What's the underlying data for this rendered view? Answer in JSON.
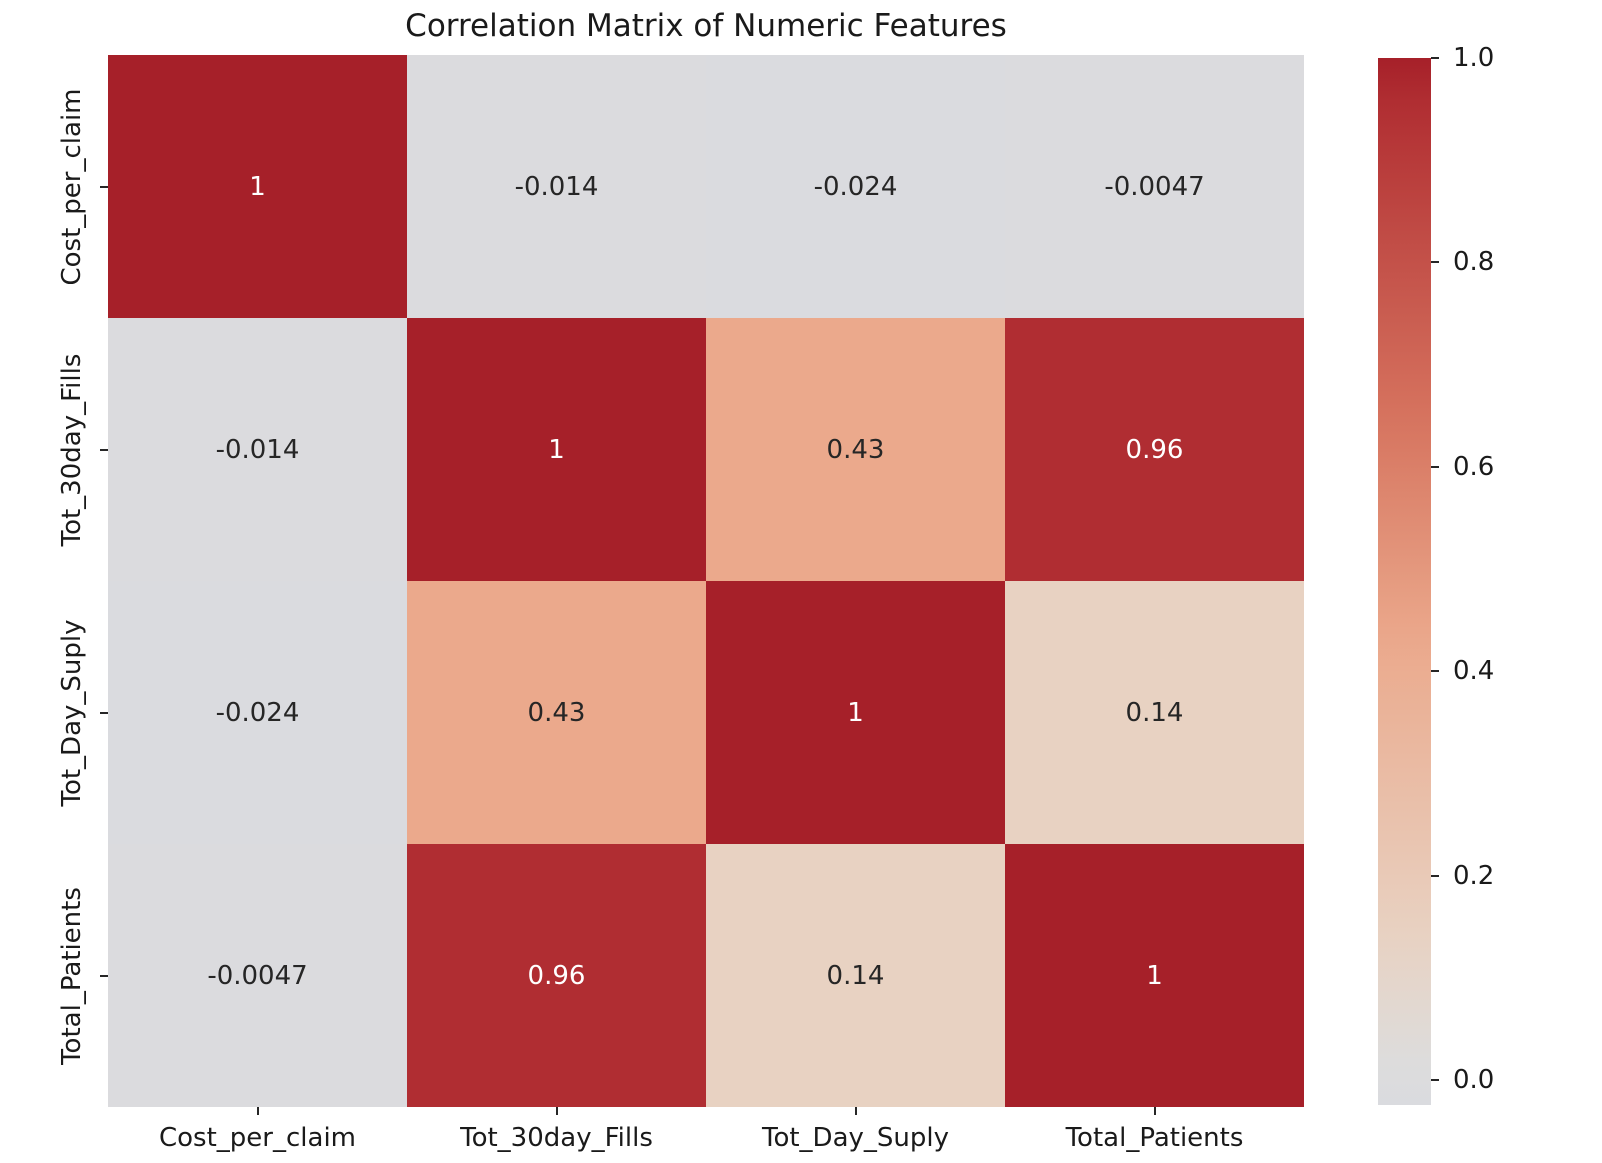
{
  "chart_data": {
    "type": "heatmap",
    "title": "Correlation Matrix of Numeric Features",
    "categories": [
      "Cost_per_claim",
      "Tot_30day_Fills",
      "Tot_Day_Suply",
      "Total_Patients"
    ],
    "matrix": [
      [
        1,
        -0.014,
        -0.024,
        -0.0047
      ],
      [
        -0.014,
        1,
        0.43,
        0.96
      ],
      [
        -0.024,
        0.43,
        1,
        0.14
      ],
      [
        -0.0047,
        0.96,
        0.14,
        1
      ]
    ],
    "cell_labels": [
      [
        "1",
        "-0.014",
        "-0.024",
        "-0.0047"
      ],
      [
        "-0.014",
        "1",
        "0.43",
        "0.96"
      ],
      [
        "-0.024",
        "0.43",
        "1",
        "0.14"
      ],
      [
        "-0.0047",
        "0.96",
        "0.14",
        "1"
      ]
    ],
    "colorbar": {
      "tick_labels": [
        "1.0",
        "0.8",
        "0.6",
        "0.4",
        "0.2",
        "0.0"
      ],
      "tick_values": [
        1.0,
        0.8,
        0.6,
        0.4,
        0.2,
        0.0
      ],
      "vmin": -0.024,
      "vmax": 1.0,
      "position": "right"
    },
    "colormap": {
      "name": "coolwarm-upper",
      "anchors": [
        {
          "v": -0.024,
          "rgb": [
            218,
            219,
            223
          ]
        },
        {
          "v": 0.02,
          "rgb": [
            221,
            220,
            220
          ]
        },
        {
          "v": 0.14,
          "rgb": [
            232,
            210,
            194
          ]
        },
        {
          "v": 0.43,
          "rgb": [
            235,
            169,
            140
          ]
        },
        {
          "v": 0.65,
          "rgb": [
            214,
            115,
            94
          ]
        },
        {
          "v": 0.96,
          "rgb": [
            176,
            45,
            50
          ]
        },
        {
          "v": 1.0,
          "rgb": [
            166,
            32,
            41
          ]
        }
      ]
    },
    "annotation_text": {
      "light_color": "#ffffff",
      "dark_color": "#262626",
      "white_text_threshold": 0.7
    },
    "grid": false
  }
}
